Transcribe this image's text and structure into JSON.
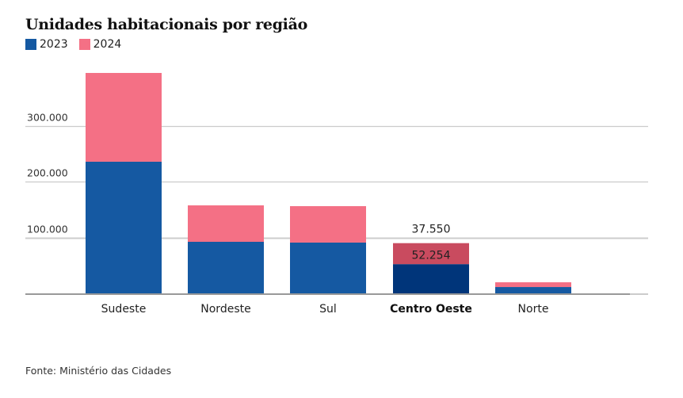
{
  "chart_data": {
    "type": "bar",
    "stacked": true,
    "title": "Unidades habitacionais por região",
    "xlabel": "",
    "ylabel": "",
    "categories": [
      "Sudeste",
      "Nordeste",
      "Sul",
      "Centro Oeste",
      "Norte"
    ],
    "series": [
      {
        "name": "2023",
        "color": "#1559a2",
        "highlight_color": "#00357a",
        "values": [
          235500,
          92200,
          90800,
          52254,
          11300
        ]
      },
      {
        "name": "2024",
        "color": "#f47085",
        "highlight_color": "#c94b5f",
        "values": [
          158800,
          65200,
          65200,
          37550,
          8500
        ]
      }
    ],
    "ylim": [
      0,
      400000
    ],
    "yticks": [
      100000,
      200000,
      300000
    ],
    "ytick_labels": [
      "100.000",
      "200.000",
      "300.000"
    ],
    "grid": true,
    "legend_position": "top-left",
    "highlighted_category": "Centro Oeste",
    "highlight_labels": {
      "2023": "52.254",
      "2024": "37.550"
    },
    "source": "Fonte: Ministério das Cidades"
  }
}
